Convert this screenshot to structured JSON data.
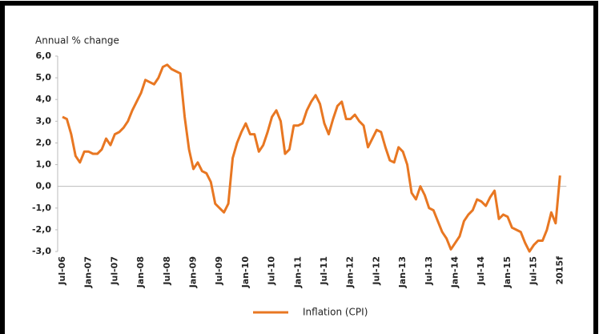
{
  "chart_data": {
    "type": "line",
    "y_axis_label": "Annual % change",
    "categories": [
      "Jul-06",
      null,
      null,
      null,
      null,
      null,
      "Jan-07",
      null,
      null,
      null,
      null,
      null,
      "Jul-07",
      null,
      null,
      null,
      null,
      null,
      "Jan-08",
      null,
      null,
      null,
      null,
      null,
      "Jul-08",
      null,
      null,
      null,
      null,
      null,
      "Jan-09",
      null,
      null,
      null,
      null,
      null,
      "Jul-09",
      null,
      null,
      null,
      null,
      null,
      "Jan-10",
      null,
      null,
      null,
      null,
      null,
      "Jul-10",
      null,
      null,
      null,
      null,
      null,
      "Jan-11",
      null,
      null,
      null,
      null,
      null,
      "Jul-11",
      null,
      null,
      null,
      null,
      null,
      "Jan-12",
      null,
      null,
      null,
      null,
      null,
      "Jul-12",
      null,
      null,
      null,
      null,
      null,
      "Jan-13",
      null,
      null,
      null,
      null,
      null,
      "Jul-13",
      null,
      null,
      null,
      null,
      null,
      "Jan-14",
      null,
      null,
      null,
      null,
      null,
      "Jul-14",
      null,
      null,
      null,
      null,
      null,
      "Jan-15",
      null,
      null,
      null,
      null,
      null,
      "Jul-15",
      null,
      null,
      null,
      null,
      null,
      "2015f"
    ],
    "series": [
      {
        "name": "Inflation (CPI)",
        "color": "#e87722",
        "values": [
          3.2,
          3.1,
          2.4,
          1.4,
          1.1,
          1.6,
          1.6,
          1.5,
          1.5,
          1.7,
          2.2,
          1.9,
          2.4,
          2.5,
          2.7,
          3.0,
          3.5,
          3.9,
          4.3,
          4.9,
          4.8,
          4.7,
          5.0,
          5.5,
          5.6,
          5.4,
          5.3,
          5.2,
          3.2,
          1.7,
          0.8,
          1.1,
          0.7,
          0.6,
          0.2,
          -0.8,
          -1.0,
          -1.2,
          -0.8,
          1.3,
          2.0,
          2.5,
          2.9,
          2.4,
          2.4,
          1.6,
          1.9,
          2.5,
          3.2,
          3.5,
          3.0,
          1.5,
          1.7,
          2.8,
          2.8,
          2.9,
          3.5,
          3.9,
          4.2,
          3.8,
          2.9,
          2.4,
          3.1,
          3.7,
          3.9,
          3.1,
          3.1,
          3.3,
          3.0,
          2.8,
          1.8,
          2.2,
          2.6,
          2.5,
          1.8,
          1.2,
          1.1,
          1.8,
          1.6,
          1.0,
          -0.3,
          -0.6,
          0.0,
          -0.4,
          -1.0,
          -1.1,
          -1.6,
          -2.1,
          -2.4,
          -2.9,
          -2.6,
          -2.3,
          -1.6,
          -1.3,
          -1.1,
          -0.6,
          -0.7,
          -0.9,
          -0.5,
          -0.2,
          -1.5,
          -1.3,
          -1.4,
          -1.9,
          -2.0,
          -2.1,
          -2.6,
          -3.0,
          -2.7,
          -2.5,
          -2.5,
          -2.0,
          -1.2,
          -1.7,
          0.5
        ]
      }
    ],
    "ylim": [
      -3,
      6
    ],
    "yticks": [
      {
        "value": 6,
        "label": "6,0"
      },
      {
        "value": 5,
        "label": "5,0"
      },
      {
        "value": 4,
        "label": "4,0"
      },
      {
        "value": 3,
        "label": "3,0"
      },
      {
        "value": 2,
        "label": "2,0"
      },
      {
        "value": 1,
        "label": "1,0"
      },
      {
        "value": 0,
        "label": "0,0"
      },
      {
        "value": -1,
        "label": "-1,0"
      },
      {
        "value": -2,
        "label": "-2,0"
      },
      {
        "value": -3,
        "label": "-3,0"
      }
    ],
    "grid": false,
    "legend": "bottom"
  }
}
